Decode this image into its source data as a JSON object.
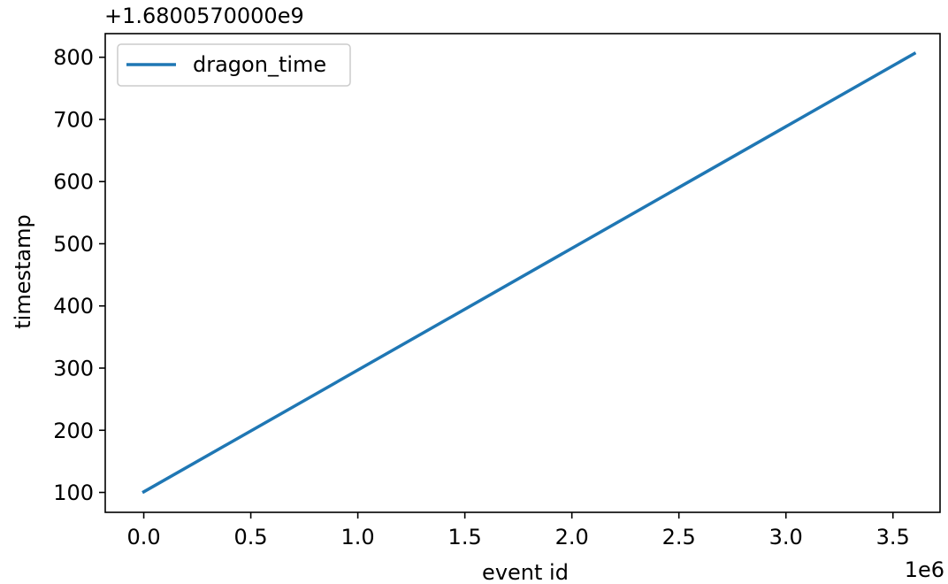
{
  "chart_data": {
    "type": "line",
    "title": "",
    "xlabel": "event id",
    "ylabel": "timestamp",
    "x_multiplier_label": "1e6",
    "y_offset_label": "+1.6800570000e9",
    "xlim": [
      -0.18,
      3.72
    ],
    "ylim": [
      68,
      838
    ],
    "x_ticks": [
      0.0,
      0.5,
      1.0,
      1.5,
      2.0,
      2.5,
      3.0,
      3.5
    ],
    "x_tick_labels": [
      "0.0",
      "0.5",
      "1.0",
      "1.5",
      "2.0",
      "2.5",
      "3.0",
      "3.5"
    ],
    "y_ticks": [
      100,
      200,
      300,
      400,
      500,
      600,
      700,
      800
    ],
    "y_tick_labels": [
      "100",
      "200",
      "300",
      "400",
      "500",
      "600",
      "700",
      "800"
    ],
    "grid": false,
    "legend_position": "upper-left",
    "series": [
      {
        "name": "dragon_time",
        "color": "#1f77b4",
        "x": [
          0.0,
          3.6
        ],
        "y": [
          101,
          806
        ]
      }
    ]
  }
}
